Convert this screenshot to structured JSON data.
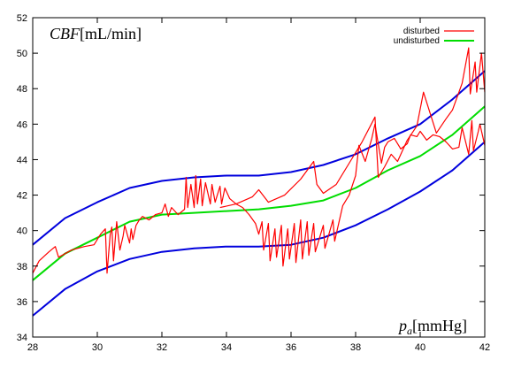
{
  "chart_data": {
    "type": "line",
    "ylabel_var": "CBF",
    "ylabel_unit": "[mL/min]",
    "xlabel_var": "p",
    "xlabel_sub": "a",
    "xlabel_unit": "[mmHg]",
    "xlim": [
      28,
      42
    ],
    "ylim": [
      34,
      52
    ],
    "xticks": [
      28,
      30,
      32,
      34,
      36,
      38,
      40,
      42
    ],
    "yticks": [
      34,
      36,
      38,
      40,
      42,
      44,
      46,
      48,
      50,
      52
    ],
    "legend_position": "top-right",
    "legend": [
      {
        "label": "disturbed",
        "color": "#ff0000"
      },
      {
        "label": "undisturbed",
        "color": "#00dd00"
      }
    ],
    "series": [
      {
        "name": "undisturbed",
        "color": "#00dd00",
        "x": [
          28,
          29,
          30,
          31,
          32,
          33,
          34,
          35,
          36,
          37,
          38,
          39,
          40,
          41,
          42
        ],
        "y": [
          37.2,
          38.7,
          39.6,
          40.5,
          40.9,
          41.0,
          41.1,
          41.2,
          41.4,
          41.7,
          42.4,
          43.4,
          44.2,
          45.4,
          47.0
        ]
      },
      {
        "name": "",
        "color": "#0000dd",
        "x": [
          28,
          29,
          30,
          31,
          32,
          33,
          34,
          35,
          36,
          37,
          38,
          39,
          40,
          41,
          42
        ],
        "y": [
          39.2,
          40.7,
          41.6,
          42.4,
          42.8,
          43.0,
          43.1,
          43.1,
          43.3,
          43.7,
          44.3,
          45.2,
          46.0,
          47.4,
          49.0
        ]
      },
      {
        "name": "",
        "color": "#0000dd",
        "x": [
          28,
          29,
          30,
          31,
          32,
          33,
          34,
          35,
          36,
          37,
          38,
          39,
          40,
          41,
          42
        ],
        "y": [
          35.2,
          36.7,
          37.7,
          38.4,
          38.8,
          39.0,
          39.1,
          39.1,
          39.2,
          39.6,
          40.3,
          41.2,
          42.2,
          43.4,
          45.0
        ]
      },
      {
        "name": "disturbed",
        "color": "#ff0000",
        "x": [
          28.0,
          28.2,
          28.5,
          28.7,
          28.8,
          29.2,
          29.6,
          29.9,
          30.1,
          30.25,
          30.3,
          30.4,
          30.45,
          30.5,
          30.6,
          30.7,
          30.8,
          30.85,
          31.0,
          31.05,
          31.1,
          31.2,
          31.3,
          31.4,
          31.6,
          31.8,
          32.0,
          32.1,
          32.2,
          32.3,
          32.5,
          32.7,
          32.75,
          32.8,
          32.9,
          33.0,
          33.05,
          33.1,
          33.2,
          33.25,
          33.35,
          33.5,
          33.55,
          33.65,
          33.8,
          33.85,
          33.95,
          34.1,
          34.3,
          34.5,
          34.7,
          34.9,
          35.0,
          35.1,
          35.15,
          35.3,
          35.35,
          35.5,
          35.55,
          35.7,
          35.75,
          35.9,
          35.95,
          36.1,
          36.15,
          36.3,
          36.35,
          36.5,
          36.55,
          36.7,
          36.75,
          37.0,
          37.05,
          37.3,
          37.35,
          37.6,
          37.8,
          38.0,
          38.1,
          38.3,
          38.5,
          38.6,
          38.8,
          38.9,
          39.0,
          39.2,
          39.4,
          39.6,
          39.7,
          39.9,
          40.0,
          40.2,
          40.4,
          40.6,
          40.8,
          41.0,
          41.2,
          41.3,
          41.5,
          41.6,
          41.65,
          41.8,
          41.85,
          42.0
        ],
        "y": [
          37.6,
          38.3,
          38.8,
          39.1,
          38.5,
          38.9,
          39.1,
          39.2,
          39.8,
          40.1,
          37.6,
          39.8,
          40.2,
          38.3,
          40.5,
          38.9,
          39.7,
          40.3,
          39.3,
          40.1,
          39.5,
          40.3,
          40.6,
          40.8,
          40.6,
          40.9,
          41.0,
          41.5,
          40.8,
          41.3,
          40.9,
          41.2,
          43.0,
          41.3,
          42.6,
          41.3,
          43.1,
          41.5,
          42.9,
          41.4,
          42.7,
          41.5,
          42.6,
          41.6,
          42.5,
          41.5,
          42.4,
          41.8,
          41.5,
          41.3,
          40.9,
          40.4,
          39.8,
          40.5,
          38.9,
          40.4,
          38.3,
          40.1,
          38.5,
          40.3,
          38.0,
          40.1,
          38.4,
          40.4,
          38.2,
          40.6,
          38.4,
          40.5,
          38.6,
          40.4,
          38.8,
          40.3,
          39.0,
          40.6,
          39.4,
          41.4,
          42.0,
          43.1,
          44.8,
          43.9,
          45.2,
          46.0,
          43.8,
          44.7,
          45.0,
          45.2,
          44.6,
          44.9,
          45.4,
          45.3,
          45.6,
          45.1,
          45.4,
          45.3,
          45.0,
          44.6,
          44.7,
          45.8,
          44.3,
          46.2,
          44.5,
          45.6,
          46.0,
          44.8
        ]
      },
      {
        "name": "",
        "color": "#ff0000",
        "x": [
          33.8,
          34.3,
          34.8,
          35.0,
          35.3,
          35.8,
          36.3,
          36.7,
          36.8,
          37.0,
          37.4,
          37.8,
          38.2,
          38.6,
          38.7,
          38.9,
          39.1,
          39.3,
          39.6,
          39.9,
          40.1,
          40.5,
          40.8,
          41.0,
          41.3,
          41.5,
          41.55,
          41.7,
          41.75,
          41.9,
          42.0
        ],
        "y": [
          41.3,
          41.5,
          41.9,
          42.3,
          41.6,
          42.0,
          42.9,
          43.9,
          42.6,
          42.1,
          42.6,
          43.8,
          45.0,
          46.4,
          43.0,
          43.6,
          44.3,
          43.9,
          45.1,
          45.9,
          47.8,
          45.5,
          46.3,
          46.8,
          48.3,
          50.3,
          47.7,
          49.5,
          47.8,
          50.0,
          47.8
        ]
      }
    ]
  }
}
